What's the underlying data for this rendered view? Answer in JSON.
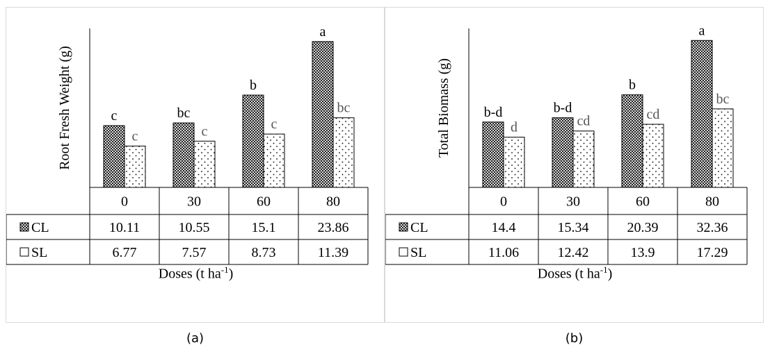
{
  "captions": {
    "a": "(a)",
    "b": "(b)"
  },
  "colors": {
    "cl_fill": "#5a5a5a",
    "sl_fill": "#ffffff",
    "axis": "#000000",
    "border": "#d9d9d9"
  },
  "legend_icons": {
    "cl": "checker-square-icon",
    "sl": "empty-square-icon"
  },
  "chart_data": [
    {
      "type": "bar",
      "panel": "a",
      "ylabel": "Root Fresh Weight (g)",
      "xlabel": "Doses (t ha",
      "xlabel_sup": "-1",
      "xlabel_tail": ")",
      "categories": [
        "0",
        "30",
        "60",
        "80"
      ],
      "ylim": [
        0,
        26
      ],
      "grid": false,
      "series": [
        {
          "name": "CL",
          "values": [
            10.11,
            10.55,
            15.1,
            23.86
          ],
          "letters": [
            "c",
            "bc",
            "b",
            "a"
          ],
          "fill": "checker"
        },
        {
          "name": "SL",
          "values": [
            6.77,
            7.57,
            8.73,
            11.39
          ],
          "letters": [
            "c",
            "c",
            "c",
            "bc"
          ],
          "fill": "dots"
        }
      ],
      "table": {
        "rows": [
          {
            "name": "CL",
            "cells": [
              "10.11",
              "10.55",
              "15.1",
              "23.86"
            ]
          },
          {
            "name": "SL",
            "cells": [
              "6.77",
              "7.57",
              "8.73",
              "11.39"
            ]
          }
        ]
      }
    },
    {
      "type": "bar",
      "panel": "b",
      "ylabel": "Total Biomass (g)",
      "xlabel": "Doses (t ha",
      "xlabel_sup": "-1",
      "xlabel_tail": ")",
      "categories": [
        "0",
        "30",
        "60",
        "80"
      ],
      "ylim": [
        0,
        35
      ],
      "grid": false,
      "series": [
        {
          "name": "CL",
          "values": [
            14.4,
            15.34,
            20.39,
            32.36
          ],
          "letters": [
            "b-d",
            "b-d",
            "b",
            "a"
          ],
          "fill": "checker"
        },
        {
          "name": "SL",
          "values": [
            11.06,
            12.42,
            13.9,
            17.29
          ],
          "letters": [
            "d",
            "cd",
            "cd",
            "bc"
          ],
          "fill": "dots"
        }
      ],
      "table": {
        "rows": [
          {
            "name": "CL",
            "cells": [
              "14.4",
              "15.34",
              "20.39",
              "32.36"
            ]
          },
          {
            "name": "SL",
            "cells": [
              "11.06",
              "12.42",
              "13.9",
              "17.29"
            ]
          }
        ]
      }
    }
  ]
}
